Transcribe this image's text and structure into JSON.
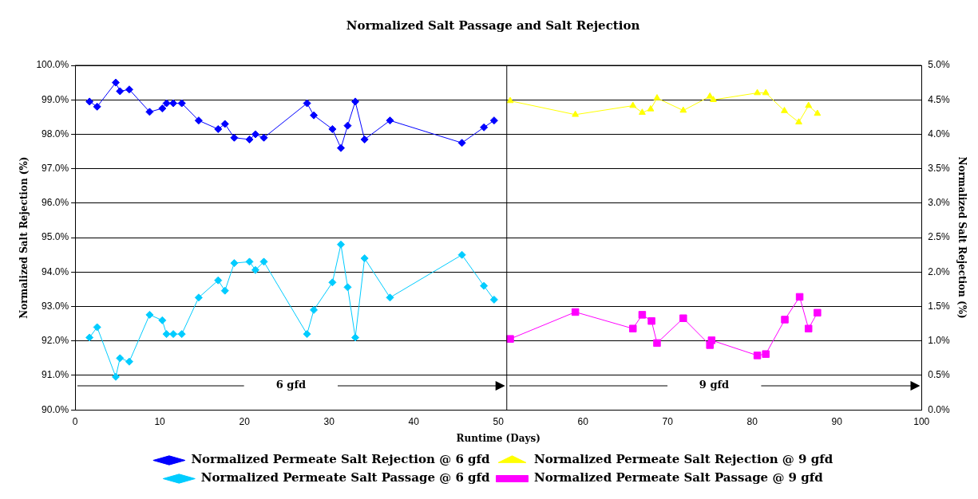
{
  "chart_data": {
    "type": "line",
    "title": "Normalized Salt Passage and Salt Rejection",
    "xlabel": "Runtime (Days)",
    "ylabel": "Normalized Salt Rejection (%)",
    "y2label": "Normalized Salt Rejection (%)",
    "xlim": [
      0,
      100
    ],
    "xticks": [
      0,
      10,
      20,
      30,
      40,
      50,
      60,
      70,
      80,
      90,
      100
    ],
    "ylim": [
      90,
      100
    ],
    "yticks": [
      {
        "value": 90,
        "label": "90.0%"
      },
      {
        "value": 91,
        "label": "91.0%"
      },
      {
        "value": 92,
        "label": "92.0%"
      },
      {
        "value": 93,
        "label": "93.0%"
      },
      {
        "value": 94,
        "label": "94.0%"
      },
      {
        "value": 95,
        "label": "95.0%"
      },
      {
        "value": 96,
        "label": "96.0%"
      },
      {
        "value": 97,
        "label": "97.0%"
      },
      {
        "value": 98,
        "label": "98.0%"
      },
      {
        "value": 99,
        "label": "99.0%"
      },
      {
        "value": 100,
        "label": "100.0%"
      }
    ],
    "y2lim": [
      0,
      5
    ],
    "y2ticks": [
      {
        "value": 0,
        "label": "0.0%"
      },
      {
        "value": 0.5,
        "label": "0.5%"
      },
      {
        "value": 1,
        "label": "1.0%"
      },
      {
        "value": 1.5,
        "label": "1.5%"
      },
      {
        "value": 2,
        "label": "2.0%"
      },
      {
        "value": 2.5,
        "label": "2.5%"
      },
      {
        "value": 3,
        "label": "3.0%"
      },
      {
        "value": 3.5,
        "label": "3.5%"
      },
      {
        "value": 4,
        "label": "4.0%"
      },
      {
        "value": 4.5,
        "label": "4.5%"
      },
      {
        "value": 5,
        "label": "5.0%"
      }
    ],
    "grid": "y",
    "legend": "bottom",
    "line_style": "solid",
    "ref_lines": [
      {
        "axis": "x",
        "value": 51,
        "color": "#000000"
      }
    ],
    "annotations": [
      "6 gfd",
      "9 gfd"
    ],
    "series": [
      {
        "name": "Normalized Permeate Salt Rejection @ 6 gfd",
        "color": "#0000ff",
        "marker": "diamond",
        "x": [
          1.7,
          2.6,
          4.8,
          5.3,
          6.4,
          8.8,
          10.3,
          10.8,
          11.6,
          12.6,
          14.6,
          16.9,
          17.7,
          18.8,
          20.6,
          21.3,
          22.3,
          27.4,
          28.2,
          30.4,
          31.4,
          32.2,
          33.1,
          34.2,
          37.2,
          45.7,
          48.3,
          49.5
        ],
        "values": [
          98.95,
          98.8,
          99.5,
          99.25,
          99.3,
          98.65,
          98.75,
          98.9,
          98.9,
          98.9,
          98.4,
          98.15,
          98.3,
          97.9,
          97.85,
          98.0,
          97.9,
          98.9,
          98.55,
          98.15,
          97.6,
          98.25,
          98.95,
          97.85,
          98.4,
          97.75,
          98.2,
          98.4
        ]
      },
      {
        "name": "Normalized Permeate Salt Passage @ 6 gfd",
        "color": "#00ccff",
        "marker": "diamond",
        "axis": "y2",
        "x": [
          1.7,
          2.6,
          4.8,
          5.3,
          6.4,
          8.8,
          10.3,
          10.8,
          11.6,
          12.6,
          14.6,
          16.9,
          17.7,
          18.8,
          20.6,
          21.3,
          22.3,
          27.4,
          28.2,
          30.4,
          31.4,
          32.2,
          33.1,
          34.2,
          37.2,
          45.7,
          48.3,
          49.5
        ],
        "values": [
          1.05,
          1.2,
          0.48,
          0.75,
          0.7,
          1.38,
          1.3,
          1.1,
          1.1,
          1.1,
          1.63,
          1.88,
          1.73,
          2.13,
          2.15,
          2.03,
          2.15,
          1.1,
          1.45,
          1.85,
          2.4,
          1.78,
          1.05,
          2.2,
          1.63,
          2.25,
          1.8,
          1.6
        ]
      },
      {
        "name": "Normalized Permeate Salt Rejection @ 9 gfd",
        "color": "#ffff00",
        "marker": "triangle",
        "x": [
          51.4,
          59.1,
          65.9,
          67.0,
          68.0,
          68.75,
          71.85,
          75.0,
          75.4,
          80.6,
          81.6,
          83.8,
          85.5,
          86.65,
          87.7
        ],
        "values": [
          98.97,
          98.57,
          98.83,
          98.63,
          98.73,
          99.05,
          98.69,
          99.1,
          99.0,
          99.2,
          99.2,
          98.68,
          98.35,
          98.83,
          98.6
        ]
      },
      {
        "name": "Normalized Permeate Salt Passage @ 9 gfd",
        "color": "#ff00ff",
        "marker": "square",
        "axis": "y2",
        "x": [
          51.4,
          59.1,
          65.9,
          67.0,
          68.1,
          68.75,
          71.85,
          75.0,
          75.2,
          80.6,
          81.6,
          83.85,
          85.6,
          86.65,
          87.7
        ],
        "values": [
          1.03,
          1.42,
          1.18,
          1.38,
          1.29,
          0.97,
          1.33,
          0.94,
          1.01,
          0.79,
          0.81,
          1.31,
          1.64,
          1.18,
          1.41
        ]
      }
    ]
  }
}
